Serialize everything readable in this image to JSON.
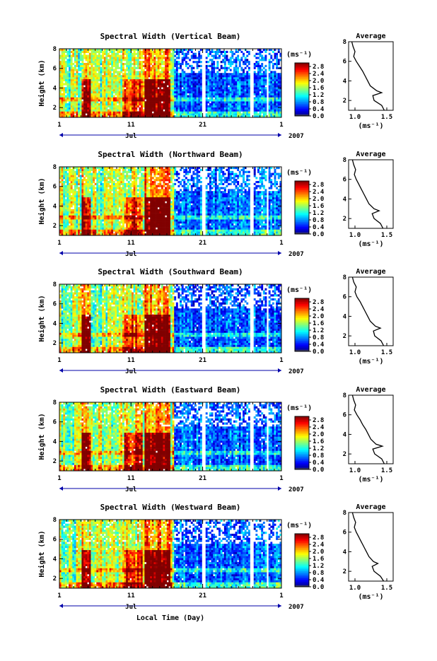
{
  "figure": {
    "x_axis_title": "Local Time (Day)",
    "month_label": "Jul",
    "year_label": "2007",
    "height_axis_title": "Height (km)",
    "colorbar_unit": "(ms⁻¹)",
    "profile_title": "Average",
    "profile_unit": "(ms⁻¹)"
  },
  "chart_data": [
    {
      "type": "heatmap",
      "title": "Spectral Width (Vertical Beam)",
      "ylabel": "Height (km)",
      "xlabel": "",
      "x_ticks": [
        "1",
        "11",
        "21",
        "1"
      ],
      "x_range_day": [
        1,
        32
      ],
      "y_ticks": [
        "2",
        "4",
        "6",
        "8"
      ],
      "ylim": [
        1,
        8
      ],
      "colorbar": {
        "label": "(ms⁻¹)",
        "ticks": [
          "0.0",
          "0.4",
          "0.8",
          "1.2",
          "1.6",
          "2.0",
          "2.4",
          "2.8"
        ],
        "range": [
          0,
          3.0
        ]
      },
      "profile": {
        "title": "Average",
        "xlabel": "(ms⁻¹)",
        "x_ticks": [
          "1.0",
          "1.5"
        ],
        "xlim": [
          0.9,
          1.6
        ],
        "y_ticks": [
          "2",
          "4",
          "6",
          "8"
        ],
        "ylim": [
          1,
          8
        ],
        "heights": [
          1.0,
          1.5,
          2.0,
          2.5,
          2.8,
          3.0,
          3.5,
          4.0,
          4.5,
          5.0,
          5.5,
          6.0,
          6.5,
          7.0,
          7.5,
          8.0
        ],
        "values": [
          1.46,
          1.42,
          1.3,
          1.28,
          1.42,
          1.34,
          1.24,
          1.2,
          1.16,
          1.12,
          1.07,
          1.02,
          0.98,
          1.0,
          0.97,
          0.95
        ]
      }
    },
    {
      "type": "heatmap",
      "title": "Spectral Width (Northward Beam)",
      "ylabel": "Height (km)",
      "xlabel": "",
      "x_ticks": [
        "1",
        "11",
        "21",
        "1"
      ],
      "x_range_day": [
        1,
        32
      ],
      "y_ticks": [
        "2",
        "4",
        "6",
        "8"
      ],
      "ylim": [
        1,
        8
      ],
      "colorbar": {
        "label": "(ms⁻¹)",
        "ticks": [
          "0.0",
          "0.4",
          "0.8",
          "1.2",
          "1.6",
          "2.0",
          "2.4",
          "2.8"
        ],
        "range": [
          0,
          3.0
        ]
      },
      "profile": {
        "title": "Average",
        "xlabel": "(ms⁻¹)",
        "x_ticks": [
          "1.0",
          "1.5"
        ],
        "xlim": [
          0.9,
          1.6
        ],
        "y_ticks": [
          "2",
          "4",
          "6",
          "8"
        ],
        "ylim": [
          1,
          8
        ],
        "heights": [
          1.0,
          1.5,
          2.0,
          2.5,
          2.8,
          3.0,
          3.5,
          4.0,
          4.5,
          5.0,
          5.5,
          6.0,
          6.5,
          7.0,
          7.5,
          8.0
        ],
        "values": [
          1.44,
          1.4,
          1.3,
          1.27,
          1.38,
          1.3,
          1.22,
          1.18,
          1.14,
          1.1,
          1.06,
          1.02,
          0.99,
          1.01,
          0.98,
          0.96
        ]
      }
    },
    {
      "type": "heatmap",
      "title": "Spectral Width (Southward Beam)",
      "ylabel": "Height (km)",
      "xlabel": "",
      "x_ticks": [
        "1",
        "11",
        "21",
        "1"
      ],
      "x_range_day": [
        1,
        32
      ],
      "y_ticks": [
        "2",
        "4",
        "6",
        "8"
      ],
      "ylim": [
        1,
        8
      ],
      "colorbar": {
        "label": "(ms⁻¹)",
        "ticks": [
          "0.0",
          "0.4",
          "0.8",
          "1.2",
          "1.6",
          "2.0",
          "2.4",
          "2.8"
        ],
        "range": [
          0,
          3.0
        ]
      },
      "profile": {
        "title": "Average",
        "xlabel": "(ms⁻¹)",
        "x_ticks": [
          "1.0",
          "1.5"
        ],
        "xlim": [
          0.9,
          1.6
        ],
        "y_ticks": [
          "2",
          "4",
          "6",
          "8"
        ],
        "ylim": [
          1,
          8
        ],
        "heights": [
          1.0,
          1.5,
          2.0,
          2.5,
          2.8,
          3.0,
          3.5,
          4.0,
          4.5,
          5.0,
          5.5,
          6.0,
          6.5,
          7.0,
          7.5,
          8.0
        ],
        "values": [
          1.45,
          1.41,
          1.31,
          1.29,
          1.4,
          1.32,
          1.24,
          1.2,
          1.16,
          1.12,
          1.08,
          1.03,
          1.0,
          1.02,
          0.98,
          0.96
        ]
      }
    },
    {
      "type": "heatmap",
      "title": "Spectral Width (Eastward Beam)",
      "ylabel": "Height (km)",
      "xlabel": "",
      "x_ticks": [
        "1",
        "11",
        "21",
        "1"
      ],
      "x_range_day": [
        1,
        32
      ],
      "y_ticks": [
        "2",
        "4",
        "6",
        "8"
      ],
      "ylim": [
        1,
        8
      ],
      "colorbar": {
        "label": "(ms⁻¹)",
        "ticks": [
          "0.0",
          "0.4",
          "0.8",
          "1.2",
          "1.6",
          "2.0",
          "2.4",
          "2.8"
        ],
        "range": [
          0,
          3.0
        ]
      },
      "profile": {
        "title": "Average",
        "xlabel": "(ms⁻¹)",
        "x_ticks": [
          "1.0",
          "1.5"
        ],
        "xlim": [
          0.9,
          1.6
        ],
        "y_ticks": [
          "2",
          "4",
          "6",
          "8"
        ],
        "ylim": [
          1,
          8
        ],
        "heights": [
          1.0,
          1.5,
          2.0,
          2.5,
          2.8,
          3.0,
          3.5,
          4.0,
          4.5,
          5.0,
          5.5,
          6.0,
          6.5,
          7.0,
          7.5,
          8.0
        ],
        "values": [
          1.46,
          1.42,
          1.31,
          1.28,
          1.43,
          1.33,
          1.25,
          1.21,
          1.17,
          1.12,
          1.08,
          1.03,
          0.99,
          1.01,
          0.98,
          0.96
        ]
      }
    },
    {
      "type": "heatmap",
      "title": "Spectral Width (Westward Beam)",
      "ylabel": "Height (km)",
      "xlabel": "Local Time (Day)",
      "x_ticks": [
        "1",
        "11",
        "21",
        "1"
      ],
      "x_range_day": [
        1,
        32
      ],
      "y_ticks": [
        "2",
        "4",
        "6",
        "8"
      ],
      "ylim": [
        1,
        8
      ],
      "colorbar": {
        "label": "(ms⁻¹)",
        "ticks": [
          "0.0",
          "0.4",
          "0.8",
          "1.2",
          "1.6",
          "2.0",
          "2.4",
          "2.8"
        ],
        "range": [
          0,
          3.0
        ]
      },
      "profile": {
        "title": "Average",
        "xlabel": "(ms⁻¹)",
        "x_ticks": [
          "1.0",
          "1.5"
        ],
        "xlim": [
          0.9,
          1.6
        ],
        "y_ticks": [
          "2",
          "4",
          "6",
          "8"
        ],
        "ylim": [
          1,
          8
        ],
        "heights": [
          1.0,
          1.5,
          2.0,
          2.5,
          2.8,
          3.0,
          3.5,
          4.0,
          4.5,
          5.0,
          5.5,
          6.0,
          6.5,
          7.0,
          7.5,
          8.0
        ],
        "values": [
          1.45,
          1.4,
          1.3,
          1.27,
          1.36,
          1.29,
          1.22,
          1.18,
          1.14,
          1.1,
          1.06,
          1.02,
          0.99,
          1.01,
          0.98,
          0.96
        ]
      }
    }
  ]
}
